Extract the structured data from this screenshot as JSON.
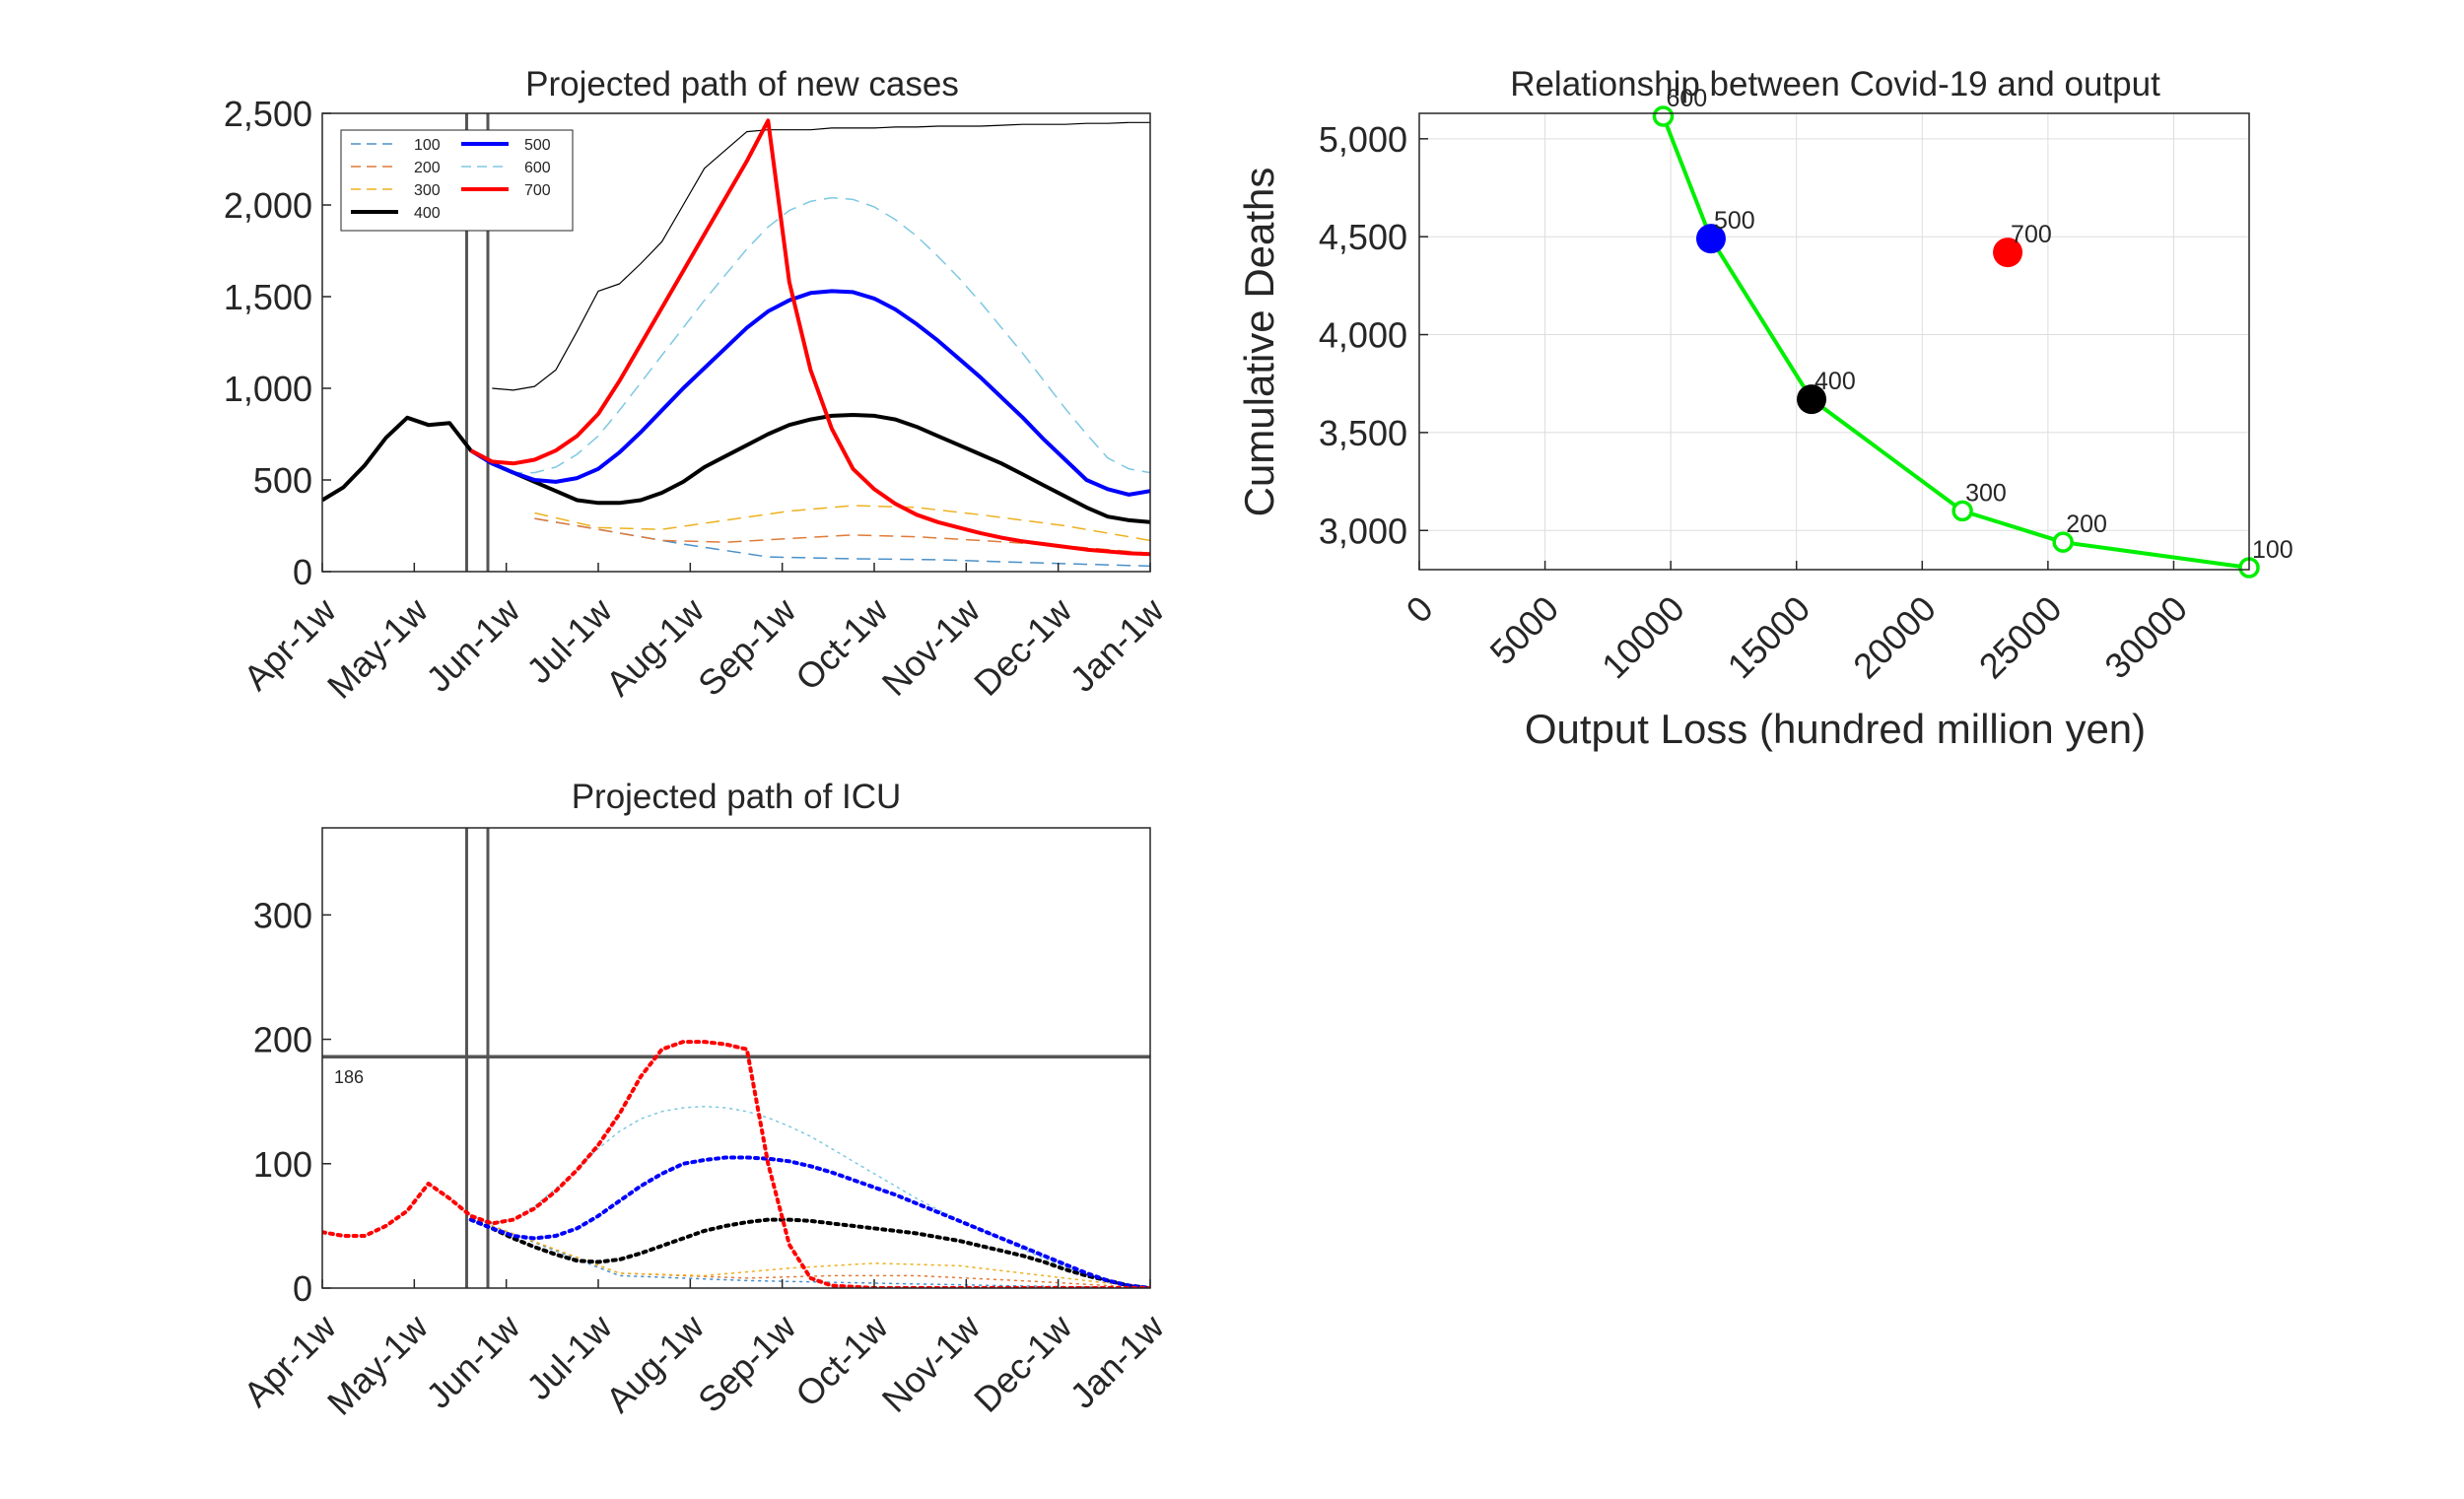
{
  "figure": {
    "background": "#ffffff"
  },
  "colors": {
    "100": "#4a90c8",
    "200": "#e07b3a",
    "300": "#edb120",
    "400": "#000000",
    "500": "#0000ff",
    "600": "#7ec8e3",
    "700": "#ff0000",
    "curve": "#00ee00",
    "vline": "#555555",
    "axis": "#262626",
    "grid": "#dddddd"
  },
  "chart_data": [
    {
      "id": "cases",
      "type": "line",
      "title": "Projected path of new cases",
      "xlabel": "",
      "ylabel": "",
      "x_ticks": [
        "Apr-1w",
        "May-1w",
        "Jun-1w",
        "Jul-1w",
        "Aug-1w",
        "Sep-1w",
        "Oct-1w",
        "Nov-1w",
        "Dec-1w",
        "Jan-1w"
      ],
      "xlim": [
        0,
        39
      ],
      "ylim": [
        0,
        2500
      ],
      "y_ticks": [
        "0",
        "500",
        "1,000",
        "1,500",
        "2,000",
        "2,500"
      ],
      "y_tick_values": [
        0,
        500,
        1000,
        1500,
        2000,
        2500
      ],
      "grid": false,
      "legend_position": "top-left",
      "vlines": [
        6.8,
        7.8
      ],
      "series": [
        {
          "name": "100",
          "color_key": "100",
          "style": "dash",
          "width": 1.5,
          "x": [
            10,
            13,
            17,
            21,
            25,
            29,
            33,
            39
          ],
          "y": [
            290,
            230,
            150,
            80,
            70,
            65,
            50,
            30
          ]
        },
        {
          "name": "200",
          "color_key": "200",
          "style": "dash",
          "width": 1.5,
          "x": [
            10,
            13,
            16,
            19,
            22,
            25,
            28,
            31,
            35,
            39
          ],
          "y": [
            290,
            230,
            170,
            160,
            180,
            200,
            190,
            170,
            140,
            100
          ]
        },
        {
          "name": "300",
          "color_key": "300",
          "style": "dash",
          "width": 1.5,
          "x": [
            10,
            13,
            16,
            19,
            22,
            25,
            28,
            31,
            35,
            39
          ],
          "y": [
            320,
            240,
            230,
            280,
            330,
            360,
            350,
            310,
            250,
            170
          ]
        },
        {
          "name": "400",
          "color_key": "400",
          "style": "solid",
          "width": 4,
          "x": [
            0,
            1,
            2,
            3,
            4,
            5,
            6,
            7,
            8,
            9,
            10,
            11,
            12,
            13,
            14,
            15,
            16,
            17,
            18,
            19,
            20,
            21,
            22,
            23,
            24,
            25,
            26,
            27,
            28,
            29,
            30,
            31,
            32,
            33,
            34,
            35,
            36,
            37,
            38,
            39
          ],
          "y": [
            390,
            460,
            580,
            730,
            840,
            800,
            810,
            660,
            590,
            540,
            490,
            440,
            390,
            375,
            375,
            390,
            430,
            490,
            570,
            630,
            690,
            750,
            800,
            830,
            850,
            855,
            850,
            830,
            790,
            740,
            690,
            640,
            590,
            530,
            470,
            410,
            350,
            300,
            280,
            270
          ]
        },
        {
          "name": "500",
          "color_key": "500",
          "style": "solid",
          "width": 4,
          "x": [
            7,
            8,
            9,
            10,
            11,
            12,
            13,
            14,
            15,
            16,
            17,
            18,
            19,
            20,
            21,
            22,
            23,
            24,
            25,
            26,
            27,
            28,
            29,
            30,
            31,
            32,
            33,
            34,
            35,
            36,
            37,
            38,
            39
          ],
          "y": [
            660,
            590,
            540,
            500,
            490,
            510,
            560,
            650,
            760,
            880,
            1000,
            1110,
            1220,
            1330,
            1420,
            1480,
            1520,
            1530,
            1525,
            1490,
            1430,
            1350,
            1260,
            1160,
            1060,
            950,
            840,
            720,
            610,
            500,
            450,
            420,
            440
          ]
        },
        {
          "name": "600",
          "color_key": "600",
          "style": "dash",
          "width": 1.5,
          "x": [
            7,
            8,
            9,
            10,
            11,
            12,
            13,
            14,
            15,
            16,
            17,
            18,
            19,
            20,
            21,
            22,
            23,
            24,
            25,
            26,
            27,
            28,
            29,
            30,
            31,
            32,
            33,
            34,
            35,
            36,
            37,
            38,
            39
          ],
          "y": [
            660,
            590,
            540,
            540,
            570,
            640,
            740,
            880,
            1030,
            1180,
            1330,
            1480,
            1620,
            1760,
            1880,
            1970,
            2020,
            2040,
            2030,
            1990,
            1920,
            1830,
            1720,
            1600,
            1470,
            1330,
            1190,
            1040,
            890,
            750,
            620,
            560,
            540
          ]
        },
        {
          "name": "700",
          "color_key": "700",
          "style": "solid",
          "width": 4,
          "x": [
            7,
            8,
            9,
            10,
            11,
            12,
            13,
            14,
            15,
            16,
            17,
            18,
            19,
            20,
            21,
            22,
            23,
            24,
            25,
            26,
            27,
            28,
            29,
            30,
            31,
            32,
            33,
            34,
            35,
            36,
            37,
            38,
            39
          ],
          "y": [
            660,
            600,
            590,
            610,
            660,
            740,
            860,
            1040,
            1240,
            1440,
            1640,
            1840,
            2040,
            2240,
            2460,
            1580,
            1100,
            780,
            560,
            450,
            370,
            310,
            270,
            240,
            210,
            185,
            165,
            150,
            135,
            120,
            110,
            100,
            95
          ]
        },
        {
          "name": "",
          "color_key": "400",
          "style": "solid",
          "width": 1.2,
          "x": [
            8,
            9,
            10,
            11,
            12,
            13,
            14,
            15,
            16,
            17,
            18,
            19,
            20,
            21,
            22,
            23,
            24,
            25,
            26,
            27,
            28,
            29,
            30,
            31,
            32,
            33,
            34,
            35,
            36,
            37,
            38,
            39
          ],
          "y": [
            1000,
            990,
            1010,
            1100,
            1310,
            1530,
            1570,
            1680,
            1800,
            2000,
            2200,
            2300,
            2400,
            2410,
            2410,
            2410,
            2420,
            2420,
            2420,
            2425,
            2425,
            2430,
            2430,
            2430,
            2435,
            2440,
            2440,
            2440,
            2445,
            2445,
            2450,
            2450
          ]
        }
      ]
    },
    {
      "id": "icu",
      "type": "line",
      "title": "Projected path of ICU",
      "xlabel": "",
      "ylabel": "",
      "x_ticks": [
        "Apr-1w",
        "May-1w",
        "Jun-1w",
        "Jul-1w",
        "Aug-1w",
        "Sep-1w",
        "Oct-1w",
        "Nov-1w",
        "Dec-1w",
        "Jan-1w"
      ],
      "xlim": [
        0,
        39
      ],
      "ylim": [
        0,
        370
      ],
      "y_ticks": [
        "0",
        "100",
        "200",
        "300"
      ],
      "y_tick_values": [
        0,
        100,
        200,
        300
      ],
      "grid": false,
      "vlines": [
        6.8,
        7.8
      ],
      "hline": {
        "value": 186,
        "label": "186"
      },
      "series": [
        {
          "name": "100",
          "color_key": "100",
          "style": "dot",
          "width": 1.5,
          "x": [
            8,
            14,
            20,
            26,
            32,
            39
          ],
          "y": [
            50,
            10,
            6,
            4,
            2,
            0
          ]
        },
        {
          "name": "200",
          "color_key": "200",
          "style": "dot",
          "width": 1.5,
          "x": [
            8,
            14,
            20,
            24,
            28,
            34,
            39
          ],
          "y": [
            50,
            12,
            8,
            10,
            10,
            5,
            0
          ]
        },
        {
          "name": "300",
          "color_key": "300",
          "style": "dot",
          "width": 1.5,
          "x": [
            8,
            14,
            18,
            22,
            26,
            30,
            34,
            39
          ],
          "y": [
            50,
            12,
            10,
            16,
            20,
            18,
            10,
            0
          ]
        },
        {
          "name": "400",
          "color_key": "400",
          "style": "dot",
          "width": 4,
          "x": [
            7,
            8,
            9,
            10,
            11,
            12,
            13,
            14,
            15,
            16,
            17,
            18,
            19,
            20,
            21,
            22,
            23,
            24,
            25,
            26,
            27,
            28,
            29,
            30,
            31,
            32,
            33,
            34,
            35,
            36,
            37,
            38,
            39
          ],
          "y": [
            55,
            48,
            40,
            33,
            27,
            22,
            21,
            23,
            28,
            34,
            40,
            46,
            50,
            53,
            55,
            55,
            54,
            52,
            50,
            48,
            46,
            44,
            41,
            38,
            34,
            30,
            26,
            21,
            15,
            10,
            6,
            2,
            0
          ]
        },
        {
          "name": "500",
          "color_key": "500",
          "style": "dot",
          "width": 4,
          "x": [
            7,
            8,
            9,
            10,
            11,
            12,
            13,
            14,
            15,
            16,
            17,
            18,
            19,
            20,
            21,
            22,
            23,
            24,
            25,
            26,
            27,
            28,
            29,
            30,
            31,
            32,
            33,
            34,
            35,
            36,
            37,
            38,
            39
          ],
          "y": [
            55,
            48,
            42,
            40,
            42,
            48,
            58,
            70,
            82,
            92,
            100,
            103,
            105,
            105,
            104,
            102,
            98,
            93,
            87,
            81,
            75,
            68,
            61,
            54,
            47,
            40,
            33,
            26,
            19,
            12,
            6,
            2,
            0
          ]
        },
        {
          "name": "600",
          "color_key": "600",
          "style": "dot",
          "width": 1.5,
          "x": [
            7,
            8,
            9,
            10,
            11,
            12,
            13,
            14,
            15,
            16,
            17,
            18,
            19,
            20,
            21,
            22,
            23,
            24,
            25,
            26,
            27,
            28,
            29,
            30,
            31,
            32,
            33,
            34,
            35,
            36,
            37,
            38,
            39
          ],
          "y": [
            55,
            52,
            56,
            66,
            80,
            96,
            112,
            126,
            136,
            142,
            145,
            146,
            145,
            142,
            137,
            130,
            122,
            112,
            102,
            92,
            82,
            72,
            63,
            55,
            47,
            39,
            31,
            24,
            17,
            11,
            6,
            2,
            0
          ]
        },
        {
          "name": "700",
          "color_key": "700",
          "style": "dot",
          "width": 4,
          "x": [
            0,
            1,
            2,
            3,
            4,
            5,
            6,
            7,
            8,
            9,
            10,
            11,
            12,
            13,
            14,
            15,
            16,
            17,
            18,
            19,
            20,
            21,
            22,
            23,
            24,
            25,
            26,
            27,
            28,
            29,
            30,
            31,
            32,
            33,
            34,
            35,
            36,
            37,
            38,
            39
          ],
          "y": [
            45,
            42,
            42,
            50,
            62,
            84,
            72,
            58,
            52,
            55,
            64,
            78,
            95,
            115,
            140,
            170,
            192,
            198,
            198,
            196,
            192,
            100,
            35,
            8,
            2,
            1,
            0,
            0,
            0,
            0,
            0,
            0,
            0,
            0,
            0,
            0,
            0,
            0,
            0,
            0
          ]
        }
      ]
    },
    {
      "id": "tradeoff",
      "type": "scatter",
      "title": "Relationship between Covid-19 and output",
      "xlabel": "Output Loss (hundred million yen)",
      "ylabel": "Cumulative Deaths",
      "xlim": [
        0,
        33000
      ],
      "ylim": [
        2800,
        5130
      ],
      "x_ticks": [
        "0",
        "5000",
        "10000",
        "15000",
        "20000",
        "25000",
        "30000"
      ],
      "x_tick_values": [
        0,
        5000,
        10000,
        15000,
        20000,
        25000,
        30000
      ],
      "y_ticks": [
        "3,000",
        "3,500",
        "4,000",
        "4,500",
        "5,000"
      ],
      "y_tick_values": [
        3000,
        3500,
        4000,
        4500,
        5000
      ],
      "grid": true,
      "curve": {
        "color_key": "curve",
        "points": [
          {
            "label": "600",
            "x": 9700,
            "y": 5115
          },
          {
            "label": "500",
            "x": 11600,
            "y": 4490
          },
          {
            "label": "400",
            "x": 15600,
            "y": 3670
          },
          {
            "label": "300",
            "x": 21600,
            "y": 3100
          },
          {
            "label": "200",
            "x": 25600,
            "y": 2940
          },
          {
            "label": "100",
            "x": 33000,
            "y": 2810
          }
        ]
      },
      "markers": [
        {
          "label": "500",
          "color_key": "500",
          "x": 11600,
          "y": 4490
        },
        {
          "label": "400",
          "color_key": "400",
          "x": 15600,
          "y": 3670
        },
        {
          "label": "700",
          "color_key": "700",
          "x": 23400,
          "y": 4420
        }
      ]
    }
  ]
}
